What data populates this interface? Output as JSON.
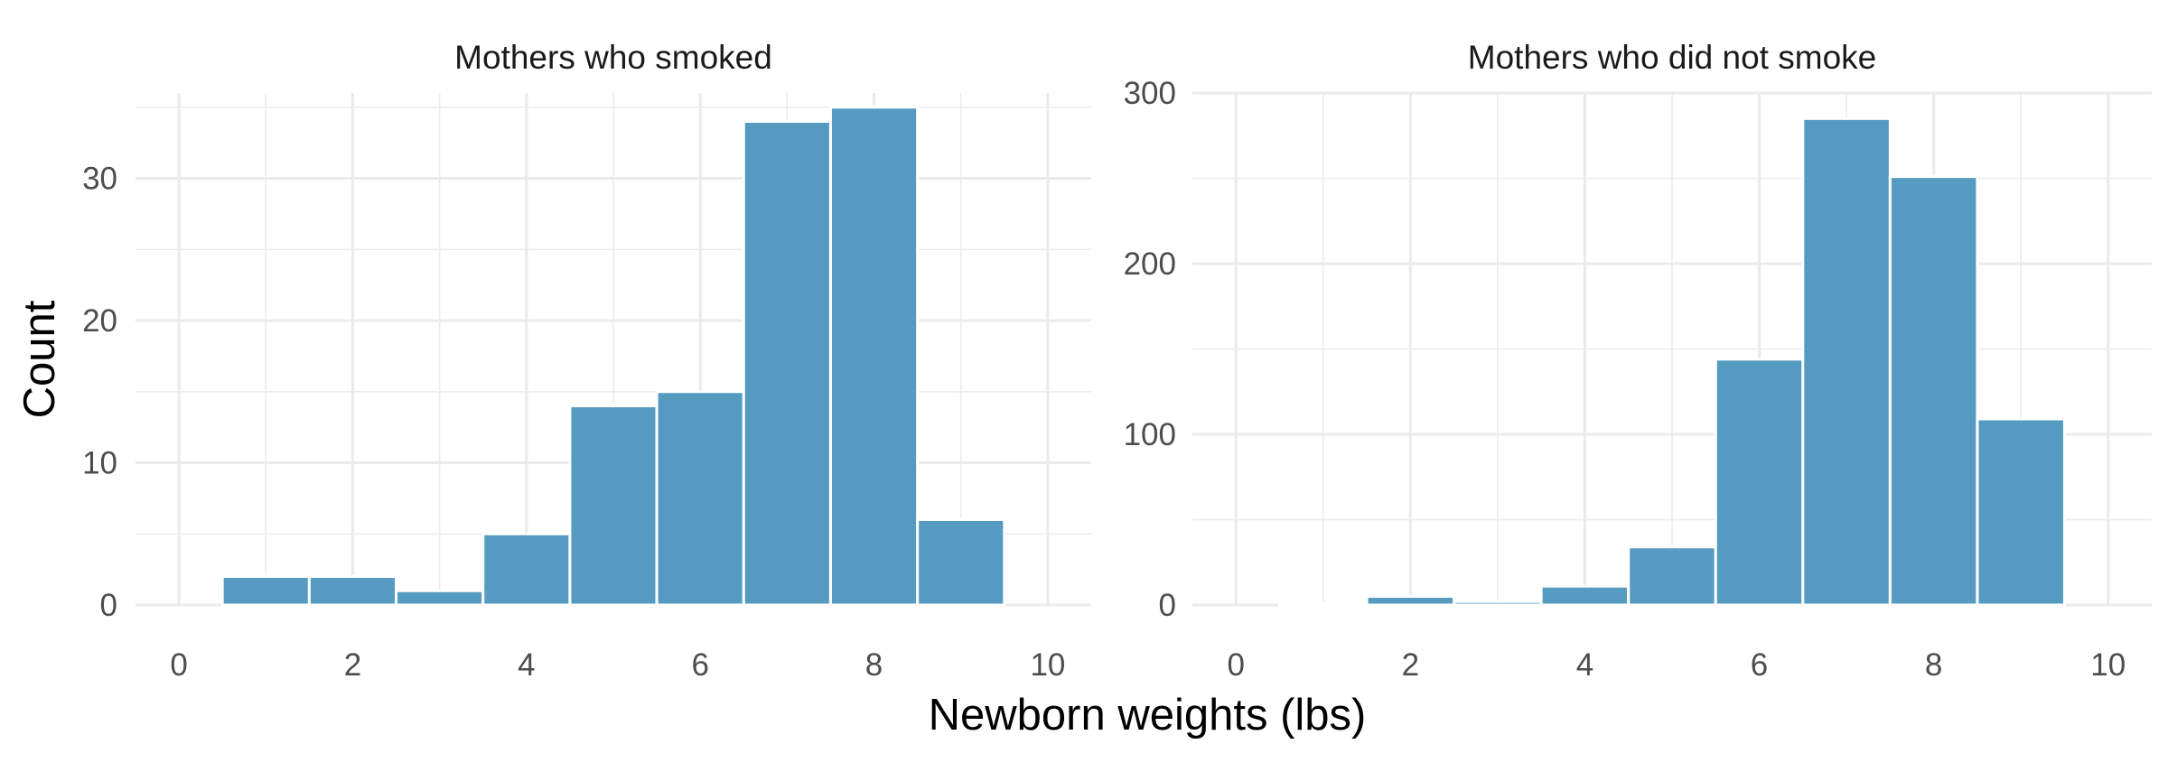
{
  "figure": {
    "xlabel": "Newborn weights (lbs)",
    "ylabel": "Count",
    "bar_color": "#559BC1"
  },
  "chart_data": [
    {
      "type": "bar",
      "title": "Mothers who smoked",
      "bin_width": 1,
      "x": [
        1,
        2,
        3,
        4,
        5,
        6,
        7,
        8,
        9
      ],
      "values": [
        2,
        2,
        1,
        5,
        14,
        15,
        34,
        35,
        6
      ],
      "xlim": [
        -0.5,
        10.5
      ],
      "ylim": [
        0,
        36
      ],
      "xticks": [
        0,
        2,
        4,
        6,
        8,
        10
      ],
      "yticks": [
        0,
        10,
        20,
        30
      ],
      "ytick_minor": [
        5,
        15,
        25,
        35
      ],
      "grid": true
    },
    {
      "type": "bar",
      "title": "Mothers who did not smoke",
      "bin_width": 1,
      "x": [
        1,
        2,
        3,
        4,
        5,
        6,
        7,
        8,
        9
      ],
      "values": [
        1,
        5,
        2,
        11,
        34,
        144,
        285,
        251,
        109
      ],
      "xlim": [
        -0.5,
        10.5
      ],
      "ylim": [
        0,
        300
      ],
      "xticks": [
        0,
        2,
        4,
        6,
        8,
        10
      ],
      "yticks": [
        0,
        100,
        200,
        300
      ],
      "ytick_minor": [
        50,
        150,
        250
      ],
      "grid": true
    }
  ]
}
